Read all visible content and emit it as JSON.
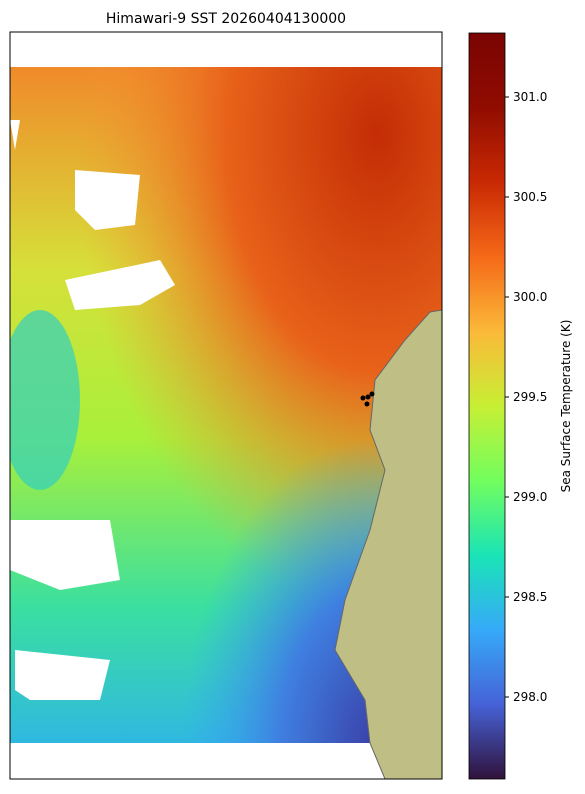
{
  "title": "Himawari-9 SST 20260404130000",
  "colorbar": {
    "label": "Sea Surface Temperature (K)",
    "lim": [
      297.59,
      301.32
    ],
    "ticks": [
      {
        "value": 298,
        "label": "298.0"
      },
      {
        "value": 298.5,
        "label": "298.5"
      },
      {
        "value": 299,
        "label": "299.0"
      },
      {
        "value": 299.5,
        "label": "299.5"
      },
      {
        "value": 300,
        "label": "300.0"
      },
      {
        "value": 300.5,
        "label": "300.5"
      },
      {
        "value": 301,
        "label": "301.0"
      }
    ]
  }
}
